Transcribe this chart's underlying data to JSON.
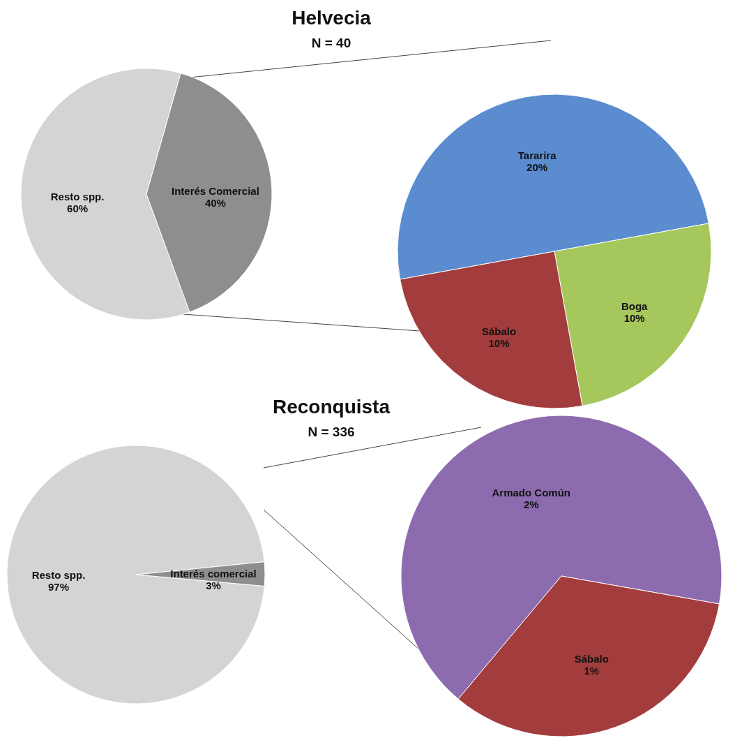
{
  "chart_data": [
    {
      "type": "pie",
      "title": "Helvecia",
      "subtitle": "N = 40",
      "categories": [
        "Resto spp.",
        "Interés Comercial"
      ],
      "values": [
        60,
        40
      ],
      "value_labels": [
        "60%",
        "40%"
      ],
      "colors": [
        "#d4d4d4",
        "#8e8e8e"
      ],
      "legend": false
    },
    {
      "type": "pie",
      "categories": [
        "Tararira",
        "Boga",
        "Sábalo"
      ],
      "values": [
        20,
        10,
        10
      ],
      "value_labels": [
        "20%",
        "10%",
        "10%"
      ],
      "colors": [
        "#5a8ccf",
        "#a6c75c",
        "#a33c3c"
      ],
      "legend": false
    },
    {
      "type": "pie",
      "title": "Reconquista",
      "subtitle": "N = 336",
      "categories": [
        "Resto spp.",
        "Interés comercial"
      ],
      "values": [
        97,
        3
      ],
      "value_labels": [
        "97%",
        "3%"
      ],
      "colors": [
        "#d4d4d4",
        "#8e8e8e"
      ],
      "legend": false
    },
    {
      "type": "pie",
      "categories": [
        "Armado Común",
        "Sábalo"
      ],
      "values": [
        2,
        1
      ],
      "value_labels": [
        "2%",
        "1%"
      ],
      "colors": [
        "#8c6cae",
        "#a33c3c"
      ],
      "legend": false
    }
  ]
}
